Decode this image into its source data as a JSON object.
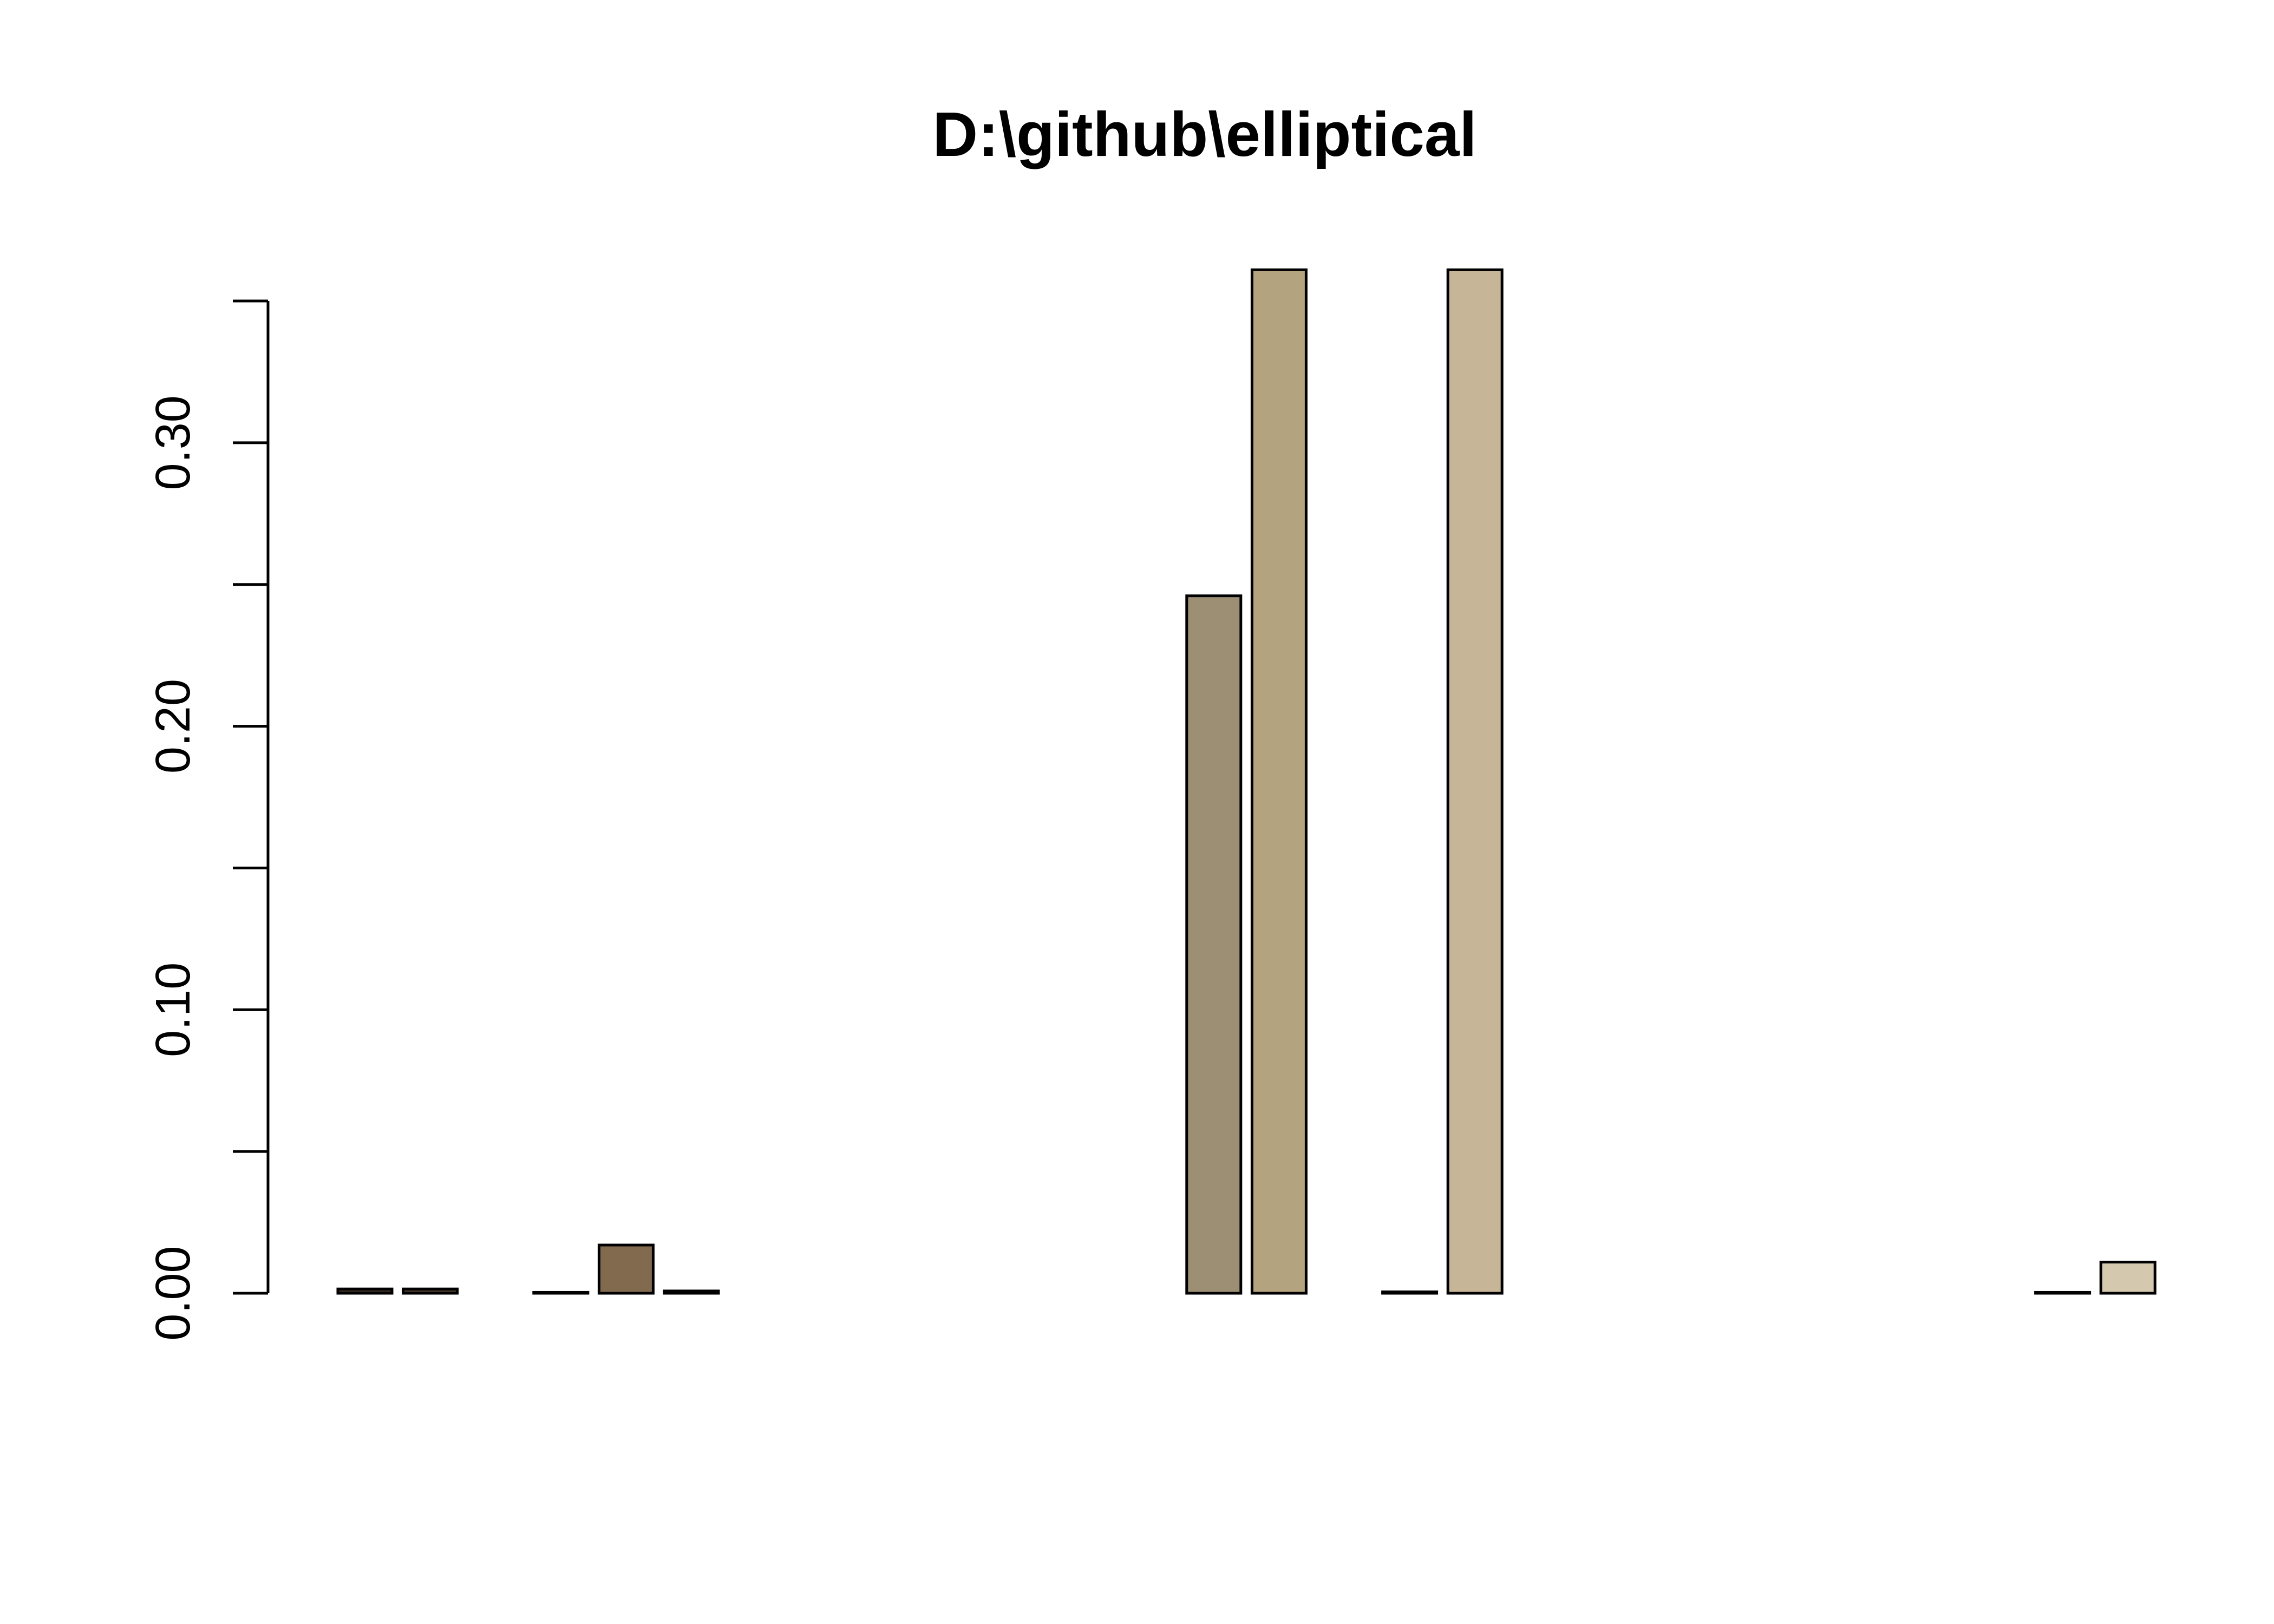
{
  "chart_data": {
    "type": "bar",
    "title": "D:\\github\\elliptical",
    "xlabel": "",
    "ylabel": "",
    "ylim": [
      0,
      0.35
    ],
    "y_ticks": [
      0,
      0.05,
      0.1,
      0.15,
      0.2,
      0.25,
      0.3,
      0.35
    ],
    "y_tick_labels": [
      "0.00",
      "",
      "0.10",
      "",
      "0.20",
      "",
      "0.30",
      ""
    ],
    "grid": false,
    "legend": "none",
    "values": [
      0.0015,
      0.0015,
      0.0,
      0.0003,
      0.017,
      0.0008,
      0.0,
      0.0,
      0.0,
      0.0,
      0.0,
      0.0,
      0.0,
      0.246,
      0.361,
      0.0,
      0.0005,
      0.361,
      0.0,
      0.0,
      0.0,
      0.0,
      0.0,
      0.0,
      0.0,
      0.0,
      0.0003,
      0.011
    ],
    "colors": [
      "#3b2e22",
      "#4a3a2a",
      "#5a4734",
      "#6b553c",
      "#826a4e",
      "#8a7458",
      "#8c7a5e",
      "#8e7f64",
      "#90836a",
      "#92876e",
      "#948a70",
      "#968d73",
      "#988f75",
      "#9c8f73",
      "#b4a37f",
      "#bba988",
      "#bfad8d",
      "#c6b597",
      "#c9b99c",
      "#ccbd9f",
      "#cec0a3",
      "#d0c3a7",
      "#d2c6ab",
      "#d3c8ae",
      "#d4cab0",
      "#d5cbb2",
      "#d6ccb3",
      "#d4c9ae"
    ]
  }
}
